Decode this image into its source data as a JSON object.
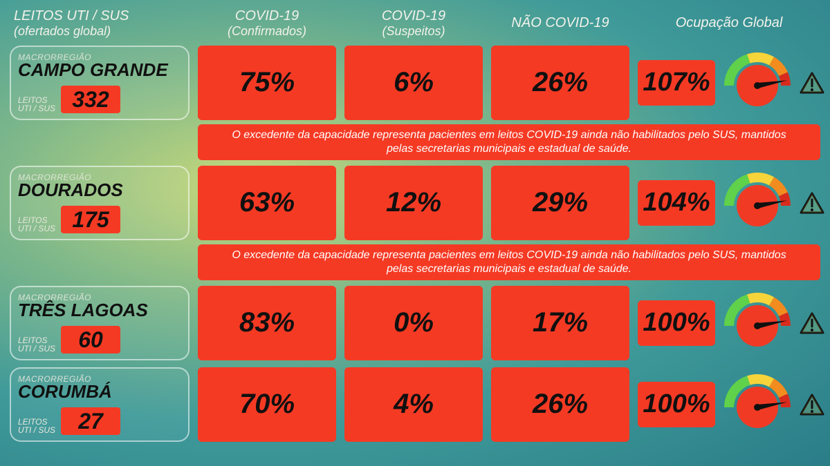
{
  "colors": {
    "box_bg": "#f53a24",
    "gauge_face": "#f03a24",
    "gauge_green": "#5fd14a",
    "gauge_yellow": "#f6d43a",
    "gauge_orange": "#f28c1e",
    "gauge_red": "#d92b1d",
    "needle": "#101010",
    "warn_stroke": "#101010",
    "warn_fill": "#f6d43a"
  },
  "headers": {
    "col1_line1": "LEITOS UTI / SUS",
    "col1_line2": "(ofertados global)",
    "col2_line1": "COVID-19",
    "col2_line2": "(Confirmados)",
    "col3_line1": "COVID-19",
    "col3_line2": "(Suspeitos)",
    "col4": "NÃO COVID-19",
    "col5": "Ocupação Global"
  },
  "labels": {
    "macro": "MACRORREGIÃO",
    "beds_label_l1": "LEITOS",
    "beds_label_l2": "UTI / SUS"
  },
  "note_text": "O excedente da capacidade representa pacientes em leitos COVID-19 ainda não habilitados pelo SUS, mantidos pelas secretarias municipais e estadual de saúde.",
  "gauge": {
    "angle_deg": 145,
    "type": "semicircle",
    "sectors": [
      {
        "from": -180,
        "to": -108,
        "color_key": "gauge_green"
      },
      {
        "from": -108,
        "to": -60,
        "color_key": "gauge_yellow"
      },
      {
        "from": -60,
        "to": -24,
        "color_key": "gauge_orange"
      },
      {
        "from": -24,
        "to": 0,
        "color_key": "gauge_red"
      }
    ]
  },
  "regions": [
    {
      "name": "CAMPO GRANDE",
      "beds": "332",
      "confirmed": "75%",
      "suspected": "6%",
      "non_covid": "26%",
      "global": "107%",
      "has_note_after": true
    },
    {
      "name": "DOURADOS",
      "beds": "175",
      "confirmed": "63%",
      "suspected": "12%",
      "non_covid": "29%",
      "global": "104%",
      "has_note_after": true
    },
    {
      "name": "TRÊS LAGOAS",
      "beds": "60",
      "confirmed": "83%",
      "suspected": "0%",
      "non_covid": "17%",
      "global": "100%",
      "has_note_after": false
    },
    {
      "name": "CORUMBÁ",
      "beds": "27",
      "confirmed": "70%",
      "suspected": "4%",
      "non_covid": "26%",
      "global": "100%",
      "has_note_after": false
    }
  ]
}
